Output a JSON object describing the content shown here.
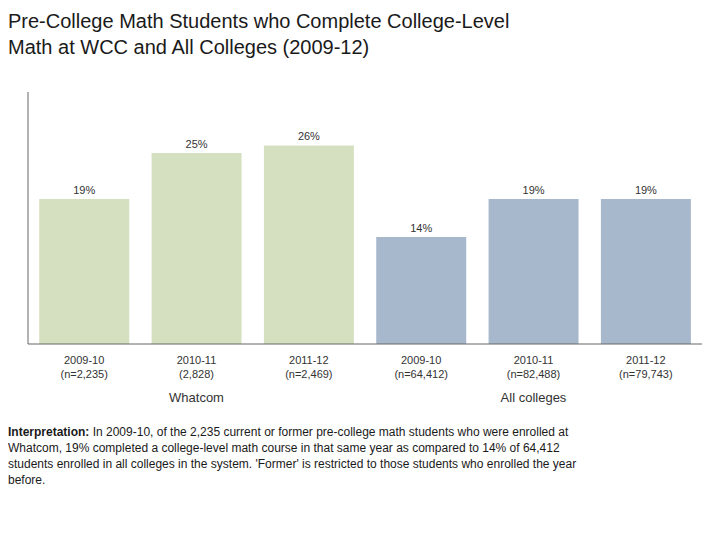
{
  "chart_data": {
    "type": "bar",
    "title": "Pre-College Math Students who Complete College-Level\nMath at WCC and All Colleges (2009-12)",
    "categories": [
      "2009-10\n(n=2,235)",
      "2010-11\n(2,828)",
      "2011-12\n(n=2,469)",
      "2009-10\n(n=64,412)",
      "2010-11\n(n=82,488)",
      "2011-12\n(n=79,743)"
    ],
    "values": [
      19,
      25,
      26,
      14,
      19,
      19
    ],
    "value_labels": [
      "19%",
      "25%",
      "26%",
      "14%",
      "19%",
      "19%"
    ],
    "data_labels": true,
    "colors": [
      "#d5e0c0",
      "#d5e0c0",
      "#d5e0c0",
      "#a8b8cc",
      "#a8b8cc",
      "#a8b8cc"
    ],
    "groups": [
      "Whatcom",
      "Whatcom",
      "Whatcom",
      "All colleges",
      "All colleges",
      "All colleges"
    ],
    "ylim": [
      0,
      33
    ],
    "tick_labels": "x",
    "grid": false,
    "annotations": [
      "Interpretation: In 2009-10, of the 2,235 current or former pre-college math students who were enrolled at\nWhatcom, 19% completed a college-level math course in that same year as compared to 14% of 64,412\nstudents enrolled in all colleges in the system. 'Former' is restricted to those students who enrolled the year\nbefore."
    ]
  }
}
